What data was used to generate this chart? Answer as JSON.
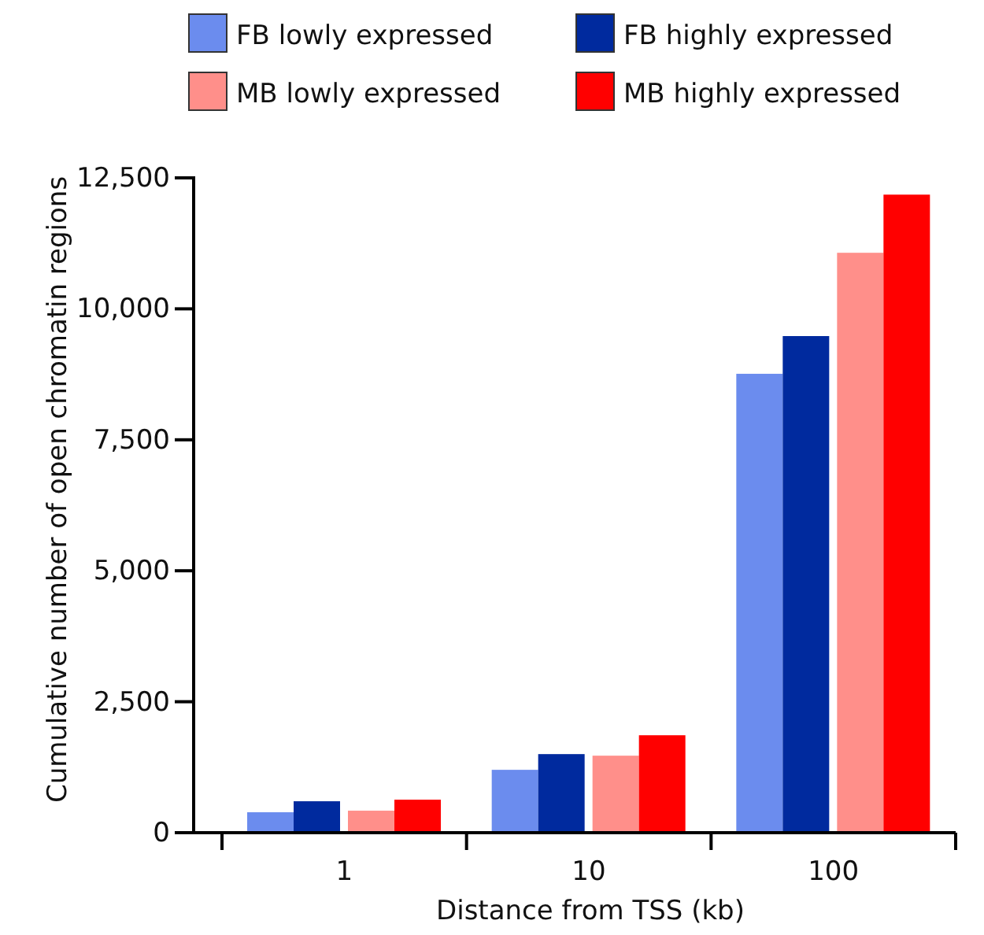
{
  "chart_data": {
    "type": "bar",
    "xlabel": "Distance from TSS (kb)",
    "ylabel": "Cumulative number of open chromatin regions",
    "categories": [
      "1",
      "10",
      "100"
    ],
    "series": [
      {
        "name": "FB lowly expressed",
        "color": "#6b8cee",
        "values": [
          390,
          1200,
          8760
        ]
      },
      {
        "name": "FB highly expressed",
        "color": "#002a9e",
        "values": [
          600,
          1500,
          9480
        ]
      },
      {
        "name": "MB lowly expressed",
        "color": "#ff8f8a",
        "values": [
          420,
          1470,
          11070
        ]
      },
      {
        "name": "MB highly expressed",
        "color": "#ff0000",
        "values": [
          630,
          1860,
          12180
        ]
      }
    ],
    "ylim": [
      0,
      12500
    ],
    "yticks": [
      {
        "value": 0,
        "label": "0"
      },
      {
        "value": 2500,
        "label": "2,500"
      },
      {
        "value": 5000,
        "label": "5,000"
      },
      {
        "value": 7500,
        "label": "7,500"
      },
      {
        "value": 10000,
        "label": "10,000"
      },
      {
        "value": 12500,
        "label": "12,500"
      }
    ],
    "grid": false,
    "legend": "top"
  }
}
